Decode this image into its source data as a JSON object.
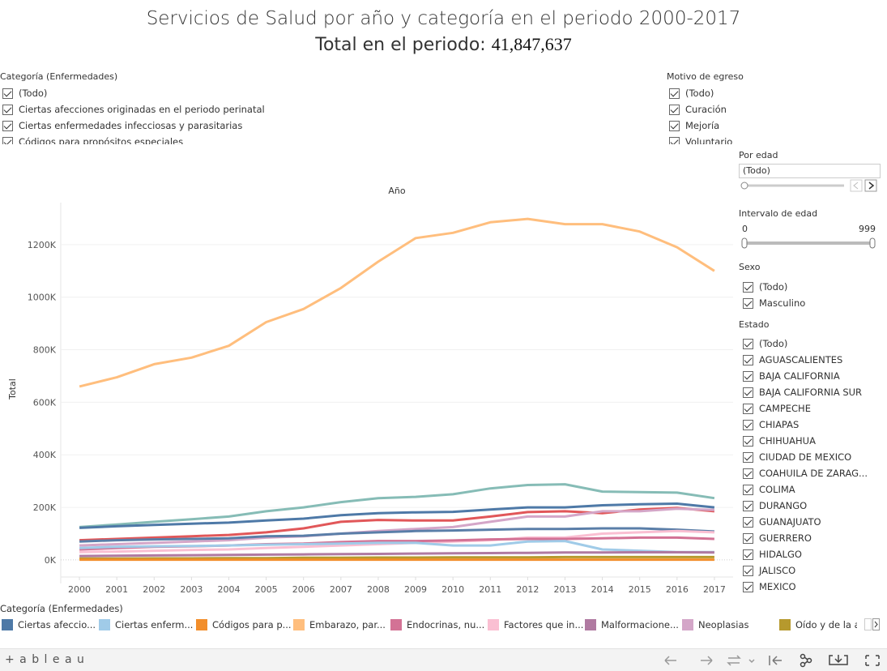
{
  "header": {
    "title": "Servicios de Salud por año y categoría en el periodo 2000-2017",
    "total_label": "Total en el periodo:",
    "total_value": "41,847,637"
  },
  "filters": {
    "categoria": {
      "title": "Categoría (Enfermedades)",
      "items": [
        "(Todo)",
        "Ciertas afecciones originadas en el periodo perinatal",
        "Ciertas enfermedades infecciosas y parasitarias",
        "Códigos para propósitos especiales"
      ]
    },
    "motivo": {
      "title": "Motivo de egreso",
      "items": [
        "(Todo)",
        "Curación",
        "Mejoría",
        "Voluntario"
      ]
    },
    "edad": {
      "title": "Por edad",
      "selected": "(Todo)"
    },
    "intervalo": {
      "title": "Intervalo de edad",
      "min": "0",
      "max": "999"
    },
    "sexo": {
      "title": "Sexo",
      "items": [
        "(Todo)",
        "Masculino"
      ]
    },
    "estado": {
      "title": "Estado",
      "items": [
        "(Todo)",
        "AGUASCALIENTES",
        "BAJA CALIFORNIA",
        "BAJA CALIFORNIA SUR",
        "CAMPECHE",
        "CHIAPAS",
        "CHIHUAHUA",
        "CIUDAD DE MEXICO",
        "COAHUILA DE ZARAG...",
        "COLIMA",
        "DURANGO",
        "GUANAJUATO",
        "GUERRERO",
        "HIDALGO",
        "JALISCO",
        "MEXICO"
      ]
    }
  },
  "chart_data": {
    "type": "line",
    "title": "Año",
    "ylabel": "Total",
    "legend_title": "Categoría (Enfermedades)",
    "categories": [
      "2000",
      "2001",
      "2002",
      "2003",
      "2004",
      "2005",
      "2006",
      "2007",
      "2008",
      "2009",
      "2010",
      "2011",
      "2012",
      "2013",
      "2014",
      "2015",
      "2016",
      "2017"
    ],
    "ylim": [
      -65000,
      1360000
    ],
    "yticks": [
      {
        "value": 0,
        "label": "0K"
      },
      {
        "value": 200000,
        "label": "200K"
      },
      {
        "value": 400000,
        "label": "400K"
      },
      {
        "value": 600000,
        "label": "600K"
      },
      {
        "value": 800000,
        "label": "800K"
      },
      {
        "value": 1000000,
        "label": "1000K"
      },
      {
        "value": 1200000,
        "label": "1200K"
      }
    ],
    "grid": true,
    "series": [
      {
        "name": "Ciertas afeccio...",
        "color": "#4e79a7",
        "values": [
          122000,
          128000,
          133000,
          138000,
          142000,
          150000,
          157000,
          170000,
          178000,
          181000,
          183000,
          192000,
          200000,
          200000,
          208000,
          212000,
          214000,
          200000
        ]
      },
      {
        "name": "Ciertas enferm...",
        "color": "#a0cbe8",
        "values": [
          45000,
          50000,
          52000,
          53000,
          55000,
          58000,
          60000,
          62000,
          65000,
          65000,
          55000,
          55000,
          70000,
          72000,
          40000,
          35000,
          30000,
          30000
        ]
      },
      {
        "name": "Códigos para p...",
        "color": "#f28e2b",
        "values": [
          1000,
          1000,
          1000,
          1000,
          1000,
          1000,
          1000,
          1000,
          1000,
          1000,
          1000,
          1000,
          1000,
          1000,
          1000,
          1000,
          1000,
          1000
        ]
      },
      {
        "name": "Embarazo, par...",
        "color": "#ffbe7d",
        "values": [
          660000,
          695000,
          745000,
          770000,
          815000,
          905000,
          955000,
          1035000,
          1135000,
          1225000,
          1245000,
          1285000,
          1298000,
          1278000,
          1278000,
          1250000,
          1190000,
          1100000
        ]
      },
      {
        "name": "Endocrinas, nu...",
        "color": "#d37295",
        "values": [
          40000,
          45000,
          50000,
          52000,
          55000,
          60000,
          62000,
          68000,
          72000,
          72000,
          74000,
          78000,
          80000,
          80000,
          82000,
          85000,
          85000,
          80000
        ]
      },
      {
        "name": "Factores que in...",
        "color": "#fabfd2",
        "values": [
          30000,
          32000,
          35000,
          38000,
          40000,
          45000,
          50000,
          55000,
          60000,
          65000,
          70000,
          75000,
          85000,
          85000,
          100000,
          105000,
          110000,
          105000
        ]
      },
      {
        "name": "Malformacione...",
        "color": "#b07aa1",
        "values": [
          15000,
          16000,
          17000,
          18000,
          19000,
          20000,
          21000,
          22000,
          23000,
          24000,
          25000,
          26000,
          27000,
          28000,
          28000,
          29000,
          29000,
          28000
        ]
      },
      {
        "name": "Neoplasias",
        "color": "#d4a6c8",
        "values": [
          55000,
          60000,
          65000,
          70000,
          75000,
          85000,
          90000,
          100000,
          110000,
          118000,
          125000,
          145000,
          165000,
          165000,
          185000,
          185000,
          195000,
          190000
        ]
      },
      {
        "name": "Oído y de la a...",
        "color": "#b6992d",
        "values": [
          5000,
          5000,
          6000,
          6000,
          7000,
          7000,
          8000,
          8000,
          9000,
          9000,
          10000,
          10000,
          10000,
          11000,
          11000,
          11000,
          11000,
          11000
        ]
      },
      {
        "color": "#86bcb6",
        "values": [
          125000,
          135000,
          145000,
          155000,
          165000,
          185000,
          200000,
          220000,
          235000,
          240000,
          250000,
          272000,
          285000,
          288000,
          260000,
          258000,
          256000,
          235000
        ]
      },
      {
        "color": "#e15759",
        "values": [
          75000,
          80000,
          85000,
          90000,
          95000,
          105000,
          120000,
          145000,
          152000,
          150000,
          150000,
          165000,
          182000,
          185000,
          178000,
          192000,
          198000,
          185000
        ]
      },
      {
        "color": "#5a7ea8",
        "values": [
          70000,
          75000,
          78000,
          80000,
          82000,
          90000,
          92000,
          100000,
          105000,
          110000,
          112000,
          115000,
          118000,
          118000,
          120000,
          120000,
          115000,
          108000
        ]
      }
    ]
  },
  "toolbar": {
    "brand": "+ a b l e a u"
  }
}
